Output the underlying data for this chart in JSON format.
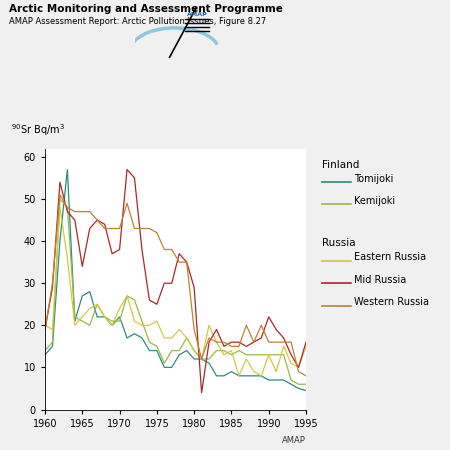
{
  "title_bold": "Arctic Monitoring and Assessment Programme",
  "title_sub": "AMAP Assessment Report: Arctic Pollution Issues, Figure 8.27",
  "ylabel": "$^{90}$Sr Bq/m$^3$",
  "amap_note": "AMAP",
  "ylim": [
    0,
    62
  ],
  "yticks": [
    0,
    10,
    20,
    30,
    40,
    50,
    60
  ],
  "xlim": [
    1960,
    1995
  ],
  "xticks": [
    1960,
    1965,
    1970,
    1975,
    1980,
    1985,
    1990,
    1995
  ],
  "series_order": [
    "Tomijoki",
    "Kemijoki",
    "Eastern Russia",
    "Mid Russia",
    "Western Russia"
  ],
  "series": {
    "Tomijoki": {
      "color": "#2e8b7a",
      "years": [
        1960,
        1961,
        1962,
        1963,
        1964,
        1965,
        1966,
        1967,
        1968,
        1969,
        1970,
        1971,
        1972,
        1973,
        1974,
        1975,
        1976,
        1977,
        1978,
        1979,
        1980,
        1981,
        1982,
        1983,
        1984,
        1985,
        1986,
        1987,
        1988,
        1989,
        1990,
        1991,
        1992,
        1993,
        1994,
        1995
      ],
      "values": [
        13,
        15,
        40,
        57,
        21,
        27,
        28,
        22,
        22,
        20,
        22,
        17,
        18,
        17,
        14,
        14,
        10,
        10,
        13,
        14,
        12,
        12,
        11,
        8,
        8,
        9,
        8,
        8,
        8,
        8,
        7,
        7,
        7,
        6,
        5,
        4.5
      ]
    },
    "Kemijoki": {
      "color": "#9ab84a",
      "years": [
        1960,
        1961,
        1962,
        1963,
        1964,
        1965,
        1966,
        1967,
        1968,
        1969,
        1970,
        1971,
        1972,
        1973,
        1974,
        1975,
        1976,
        1977,
        1978,
        1979,
        1980,
        1981,
        1982,
        1983,
        1984,
        1985,
        1986,
        1987,
        1988,
        1989,
        1990,
        1991,
        1992,
        1993,
        1994,
        1995
      ],
      "values": [
        14,
        16,
        50,
        48,
        22,
        21,
        20,
        25,
        22,
        21,
        21,
        27,
        26,
        21,
        16,
        15,
        11,
        14,
        14,
        17,
        14,
        12,
        12,
        14,
        14,
        13,
        14,
        13,
        13,
        13,
        13,
        13,
        13,
        7,
        6,
        6
      ]
    },
    "Eastern Russia": {
      "color": "#d4c840",
      "years": [
        1960,
        1961,
        1962,
        1963,
        1964,
        1965,
        1966,
        1967,
        1968,
        1969,
        1970,
        1971,
        1972,
        1973,
        1974,
        1975,
        1976,
        1977,
        1978,
        1979,
        1980,
        1981,
        1982,
        1983,
        1984,
        1985,
        1986,
        1987,
        1988,
        1989,
        1990,
        1991,
        1992,
        1993,
        1994,
        1995
      ],
      "values": [
        20,
        19,
        48,
        36,
        20,
        22,
        24,
        25,
        22,
        20,
        24,
        27,
        21,
        20,
        20,
        21,
        17,
        17,
        19,
        17,
        14,
        12,
        20,
        16,
        13,
        14,
        8,
        12,
        9,
        8,
        13,
        9,
        15,
        11,
        10,
        15
      ]
    },
    "Mid Russia": {
      "color": "#aa2828",
      "years": [
        1960,
        1961,
        1962,
        1963,
        1964,
        1965,
        1966,
        1967,
        1968,
        1969,
        1970,
        1971,
        1972,
        1973,
        1974,
        1975,
        1976,
        1977,
        1978,
        1979,
        1980,
        1981,
        1982,
        1983,
        1984,
        1985,
        1986,
        1987,
        1988,
        1989,
        1990,
        1991,
        1992,
        1993,
        1994,
        1995
      ],
      "values": [
        19,
        29,
        54,
        47,
        45,
        34,
        43,
        45,
        44,
        37,
        38,
        57,
        55,
        38,
        26,
        25,
        30,
        30,
        37,
        35,
        29,
        4,
        16,
        19,
        15,
        16,
        16,
        15,
        16,
        17,
        22,
        19,
        17,
        13,
        10,
        16
      ]
    },
    "Western Russia": {
      "color": "#c08030",
      "years": [
        1960,
        1961,
        1962,
        1963,
        1964,
        1965,
        1966,
        1967,
        1968,
        1969,
        1970,
        1971,
        1972,
        1973,
        1974,
        1975,
        1976,
        1977,
        1978,
        1979,
        1980,
        1981,
        1982,
        1983,
        1984,
        1985,
        1986,
        1987,
        1988,
        1989,
        1990,
        1991,
        1992,
        1993,
        1994,
        1995
      ],
      "values": [
        19,
        30,
        51,
        48,
        47,
        47,
        47,
        45,
        43,
        43,
        43,
        49,
        43,
        43,
        43,
        42,
        38,
        38,
        35,
        35,
        19,
        12,
        17,
        16,
        16,
        15,
        15,
        20,
        16,
        20,
        16,
        16,
        16,
        16,
        9,
        8
      ]
    }
  },
  "legend_groups": {
    "Finland": [
      "Tomijoki",
      "Kemijoki"
    ],
    "Russia": [
      "Eastern Russia",
      "Mid Russia",
      "Western Russia"
    ]
  },
  "bg_color": "#f0f0f0",
  "plot_bg": "#ffffff"
}
